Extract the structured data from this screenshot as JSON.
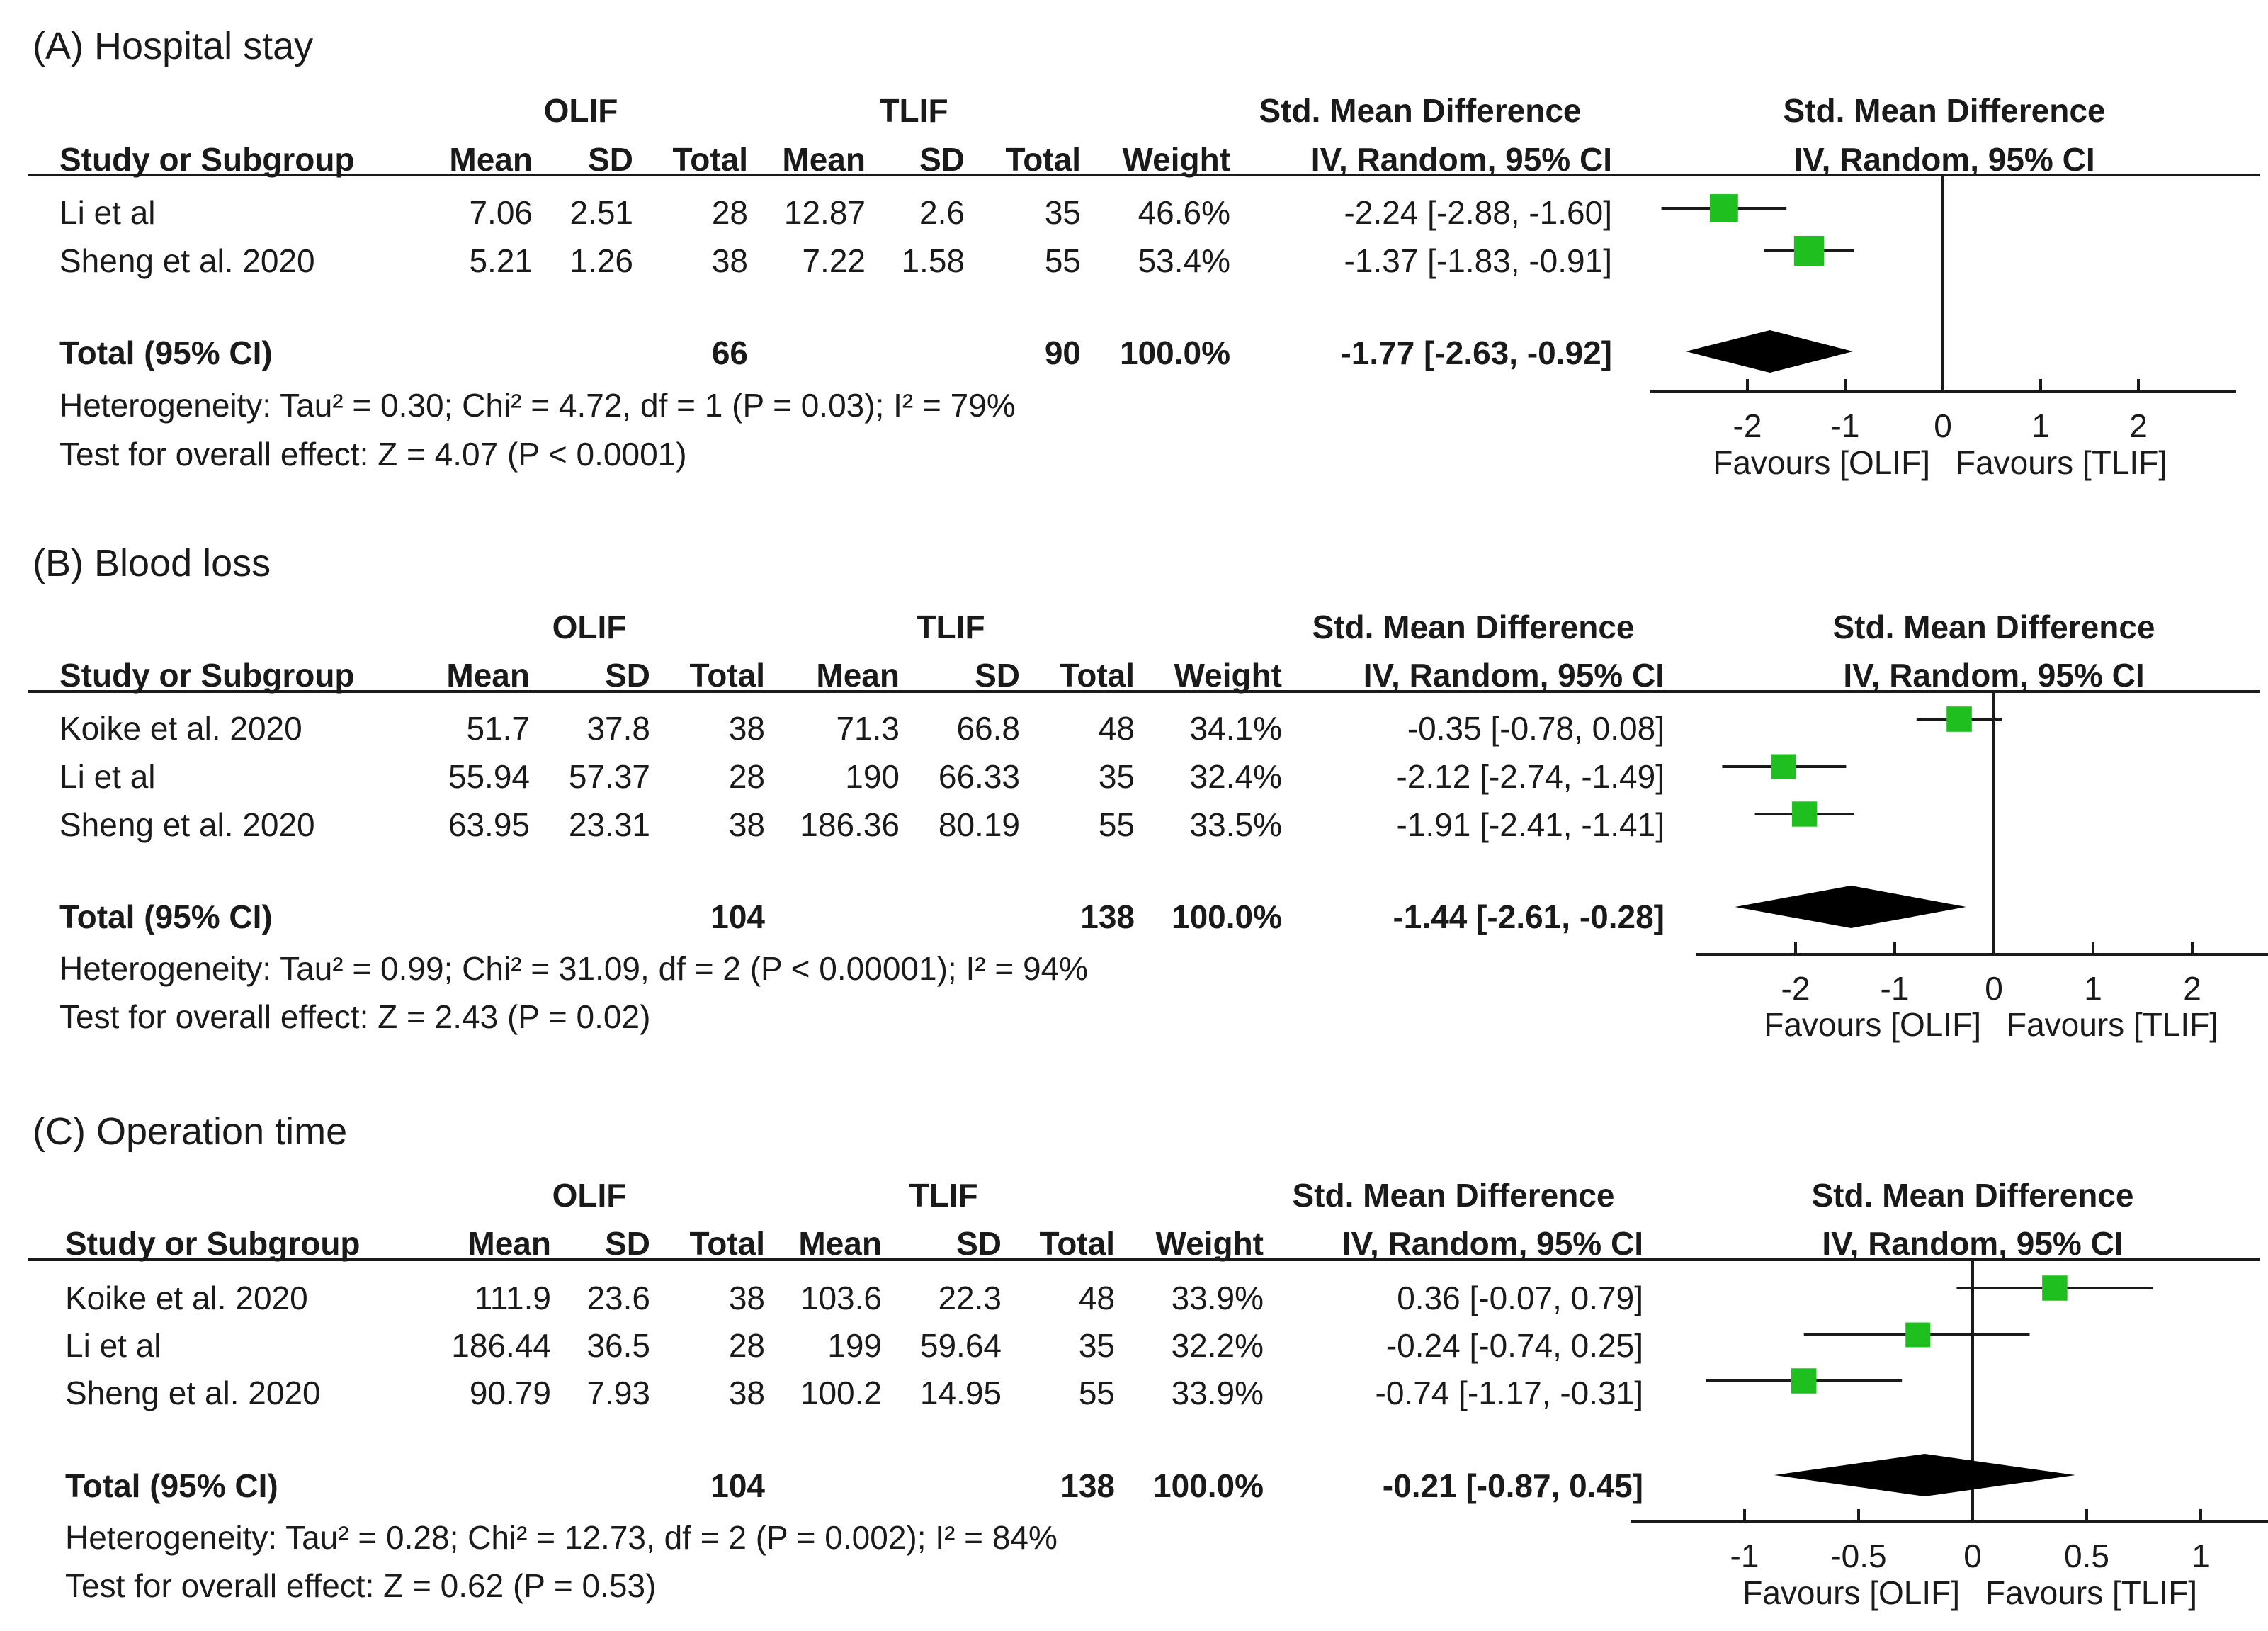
{
  "column_headers": {
    "study": "Study or Subgroup",
    "mean": "Mean",
    "sd": "SD",
    "total": "Total",
    "weight": "Weight",
    "smd_title": "Std. Mean Difference",
    "smd_method": "IV, Random, 95% CI"
  },
  "groups": {
    "exp": "OLIF",
    "ctrl": "TLIF"
  },
  "favours": {
    "left": "Favours [OLIF]",
    "right": "Favours [TLIF]"
  },
  "chart_data": [
    {
      "type": "forest",
      "title": "(A) Hospital stay",
      "xlim": [
        -3,
        3
      ],
      "ticks": [
        -2,
        -1,
        0,
        1,
        2
      ],
      "tick_labels": [
        "-2",
        "-1",
        "0",
        "1",
        "2"
      ],
      "studies": [
        {
          "name": "Li et al",
          "exp_mean": "7.06",
          "exp_sd": "2.51",
          "exp_total": "28",
          "ctrl_mean": "12.87",
          "ctrl_sd": "2.6",
          "ctrl_total": "35",
          "weight": "46.6%",
          "ci_text": "-2.24 [-2.88, -1.60]",
          "smd": -2.24,
          "lower": -2.88,
          "upper": -1.6,
          "w": 46.6
        },
        {
          "name": "Sheng et al. 2020",
          "exp_mean": "5.21",
          "exp_sd": "1.26",
          "exp_total": "38",
          "ctrl_mean": "7.22",
          "ctrl_sd": "1.58",
          "ctrl_total": "55",
          "weight": "53.4%",
          "ci_text": "-1.37 [-1.83, -0.91]",
          "smd": -1.37,
          "lower": -1.83,
          "upper": -0.91,
          "w": 53.4
        }
      ],
      "total": {
        "label": "Total (95% CI)",
        "exp_total": "66",
        "ctrl_total": "90",
        "weight": "100.0%",
        "ci_text": "-1.77 [-2.63, -0.92]",
        "smd": -1.77,
        "lower": -2.63,
        "upper": -0.92
      },
      "heterogeneity": "Heterogeneity: Tau² = 0.30; Chi² = 4.72, df = 1 (P = 0.03); I² = 79%",
      "overall": "Test for overall effect: Z = 4.07 (P < 0.0001)"
    },
    {
      "type": "forest",
      "title": "(B) Blood loss",
      "xlim": [
        -3,
        3
      ],
      "ticks": [
        -2,
        -1,
        0,
        1,
        2
      ],
      "tick_labels": [
        "-2",
        "-1",
        "0",
        "1",
        "2"
      ],
      "studies": [
        {
          "name": "Koike et al. 2020",
          "exp_mean": "51.7",
          "exp_sd": "37.8",
          "exp_total": "38",
          "ctrl_mean": "71.3",
          "ctrl_sd": "66.8",
          "ctrl_total": "48",
          "weight": "34.1%",
          "ci_text": "-0.35 [-0.78, 0.08]",
          "smd": -0.35,
          "lower": -0.78,
          "upper": 0.08,
          "w": 34.1
        },
        {
          "name": "Li et al",
          "exp_mean": "55.94",
          "exp_sd": "57.37",
          "exp_total": "28",
          "ctrl_mean": "190",
          "ctrl_sd": "66.33",
          "ctrl_total": "35",
          "weight": "32.4%",
          "ci_text": "-2.12 [-2.74, -1.49]",
          "smd": -2.12,
          "lower": -2.74,
          "upper": -1.49,
          "w": 32.4
        },
        {
          "name": "Sheng et al. 2020",
          "exp_mean": "63.95",
          "exp_sd": "23.31",
          "exp_total": "38",
          "ctrl_mean": "186.36",
          "ctrl_sd": "80.19",
          "ctrl_total": "55",
          "weight": "33.5%",
          "ci_text": "-1.91 [-2.41, -1.41]",
          "smd": -1.91,
          "lower": -2.41,
          "upper": -1.41,
          "w": 33.5
        }
      ],
      "total": {
        "label": "Total (95% CI)",
        "exp_total": "104",
        "ctrl_total": "138",
        "weight": "100.0%",
        "ci_text": "-1.44 [-2.61, -0.28]",
        "smd": -1.44,
        "lower": -2.61,
        "upper": -0.28
      },
      "heterogeneity": "Heterogeneity: Tau² = 0.99; Chi² = 31.09, df = 2 (P < 0.00001); I² = 94%",
      "overall": "Test for overall effect: Z = 2.43 (P = 0.02)"
    },
    {
      "type": "forest",
      "title": "(C) Operation time",
      "xlim": [
        -1.5,
        1.5
      ],
      "ticks": [
        -1,
        -0.5,
        0,
        0.5,
        1
      ],
      "tick_labels": [
        "-1",
        "-0.5",
        "0",
        "0.5",
        "1"
      ],
      "studies": [
        {
          "name": "Koike et al. 2020",
          "exp_mean": "111.9",
          "exp_sd": "23.6",
          "exp_total": "38",
          "ctrl_mean": "103.6",
          "ctrl_sd": "22.3",
          "ctrl_total": "48",
          "weight": "33.9%",
          "ci_text": "0.36 [-0.07, 0.79]",
          "smd": 0.36,
          "lower": -0.07,
          "upper": 0.79,
          "w": 33.9
        },
        {
          "name": "Li et al",
          "exp_mean": "186.44",
          "exp_sd": "36.5",
          "exp_total": "28",
          "ctrl_mean": "199",
          "ctrl_sd": "59.64",
          "ctrl_total": "35",
          "weight": "32.2%",
          "ci_text": "-0.24 [-0.74, 0.25]",
          "smd": -0.24,
          "lower": -0.74,
          "upper": 0.25,
          "w": 32.2
        },
        {
          "name": "Sheng et al. 2020",
          "exp_mean": "90.79",
          "exp_sd": "7.93",
          "exp_total": "38",
          "ctrl_mean": "100.2",
          "ctrl_sd": "14.95",
          "ctrl_total": "55",
          "weight": "33.9%",
          "ci_text": "-0.74 [-1.17, -0.31]",
          "smd": -0.74,
          "lower": -1.17,
          "upper": -0.31,
          "w": 33.9
        }
      ],
      "total": {
        "label": "Total (95% CI)",
        "exp_total": "104",
        "ctrl_total": "138",
        "weight": "100.0%",
        "ci_text": "-0.21 [-0.87, 0.45]",
        "smd": -0.21,
        "lower": -0.87,
        "upper": 0.45
      },
      "heterogeneity": "Heterogeneity: Tau² = 0.28; Chi² = 12.73, df = 2 (P = 0.002); I² = 84%",
      "overall": "Test for overall effect: Z = 0.62 (P = 0.53)"
    }
  ],
  "colors": {
    "marker": "#1fbf1f",
    "diamond": "#000000",
    "line": "#1a1a1a"
  }
}
